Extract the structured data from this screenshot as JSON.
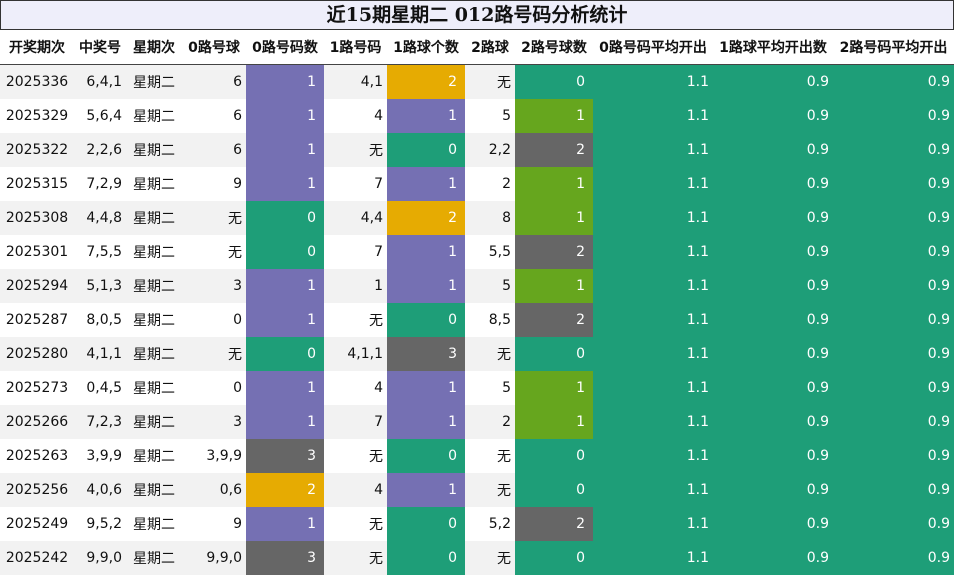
{
  "title": "近15期星期二 012路号码分析统计",
  "headers": [
    "开奖期次",
    "中奖号",
    "星期次",
    "0路号球",
    "0路号码数",
    "1路号码",
    "1路球个数",
    "2路球",
    "2路号球数",
    "0路号码平均开出",
    "1路球平均开出数",
    "2路号码平均开出"
  ],
  "colors": {
    "count_0": "#1e9e78",
    "count_1": "#7570b3",
    "count_2": "#e6ab02",
    "count_3": "#666666",
    "route2_count_1": "#66a61e",
    "route2_count_2": "#666666",
    "average": "#1e9e78"
  },
  "rows": [
    {
      "period": "2025336",
      "number": "6,4,1",
      "weekday": "星期二",
      "r0": "6",
      "r0n": "1",
      "r1": "4,1",
      "r1n": "2",
      "r2": "无",
      "r2n": "0",
      "a0": "1.1",
      "a1": "0.9",
      "a2": "0.9"
    },
    {
      "period": "2025329",
      "number": "5,6,4",
      "weekday": "星期二",
      "r0": "6",
      "r0n": "1",
      "r1": "4",
      "r1n": "1",
      "r2": "5",
      "r2n": "1",
      "a0": "1.1",
      "a1": "0.9",
      "a2": "0.9"
    },
    {
      "period": "2025322",
      "number": "2,2,6",
      "weekday": "星期二",
      "r0": "6",
      "r0n": "1",
      "r1": "无",
      "r1n": "0",
      "r2": "2,2",
      "r2n": "2",
      "a0": "1.1",
      "a1": "0.9",
      "a2": "0.9"
    },
    {
      "period": "2025315",
      "number": "7,2,9",
      "weekday": "星期二",
      "r0": "9",
      "r0n": "1",
      "r1": "7",
      "r1n": "1",
      "r2": "2",
      "r2n": "1",
      "a0": "1.1",
      "a1": "0.9",
      "a2": "0.9"
    },
    {
      "period": "2025308",
      "number": "4,4,8",
      "weekday": "星期二",
      "r0": "无",
      "r0n": "0",
      "r1": "4,4",
      "r1n": "2",
      "r2": "8",
      "r2n": "1",
      "a0": "1.1",
      "a1": "0.9",
      "a2": "0.9"
    },
    {
      "period": "2025301",
      "number": "7,5,5",
      "weekday": "星期二",
      "r0": "无",
      "r0n": "0",
      "r1": "7",
      "r1n": "1",
      "r2": "5,5",
      "r2n": "2",
      "a0": "1.1",
      "a1": "0.9",
      "a2": "0.9"
    },
    {
      "period": "2025294",
      "number": "5,1,3",
      "weekday": "星期二",
      "r0": "3",
      "r0n": "1",
      "r1": "1",
      "r1n": "1",
      "r2": "5",
      "r2n": "1",
      "a0": "1.1",
      "a1": "0.9",
      "a2": "0.9"
    },
    {
      "period": "2025287",
      "number": "8,0,5",
      "weekday": "星期二",
      "r0": "0",
      "r0n": "1",
      "r1": "无",
      "r1n": "0",
      "r2": "8,5",
      "r2n": "2",
      "a0": "1.1",
      "a1": "0.9",
      "a2": "0.9"
    },
    {
      "period": "2025280",
      "number": "4,1,1",
      "weekday": "星期二",
      "r0": "无",
      "r0n": "0",
      "r1": "4,1,1",
      "r1n": "3",
      "r2": "无",
      "r2n": "0",
      "a0": "1.1",
      "a1": "0.9",
      "a2": "0.9"
    },
    {
      "period": "2025273",
      "number": "0,4,5",
      "weekday": "星期二",
      "r0": "0",
      "r0n": "1",
      "r1": "4",
      "r1n": "1",
      "r2": "5",
      "r2n": "1",
      "a0": "1.1",
      "a1": "0.9",
      "a2": "0.9"
    },
    {
      "period": "2025266",
      "number": "7,2,3",
      "weekday": "星期二",
      "r0": "3",
      "r0n": "1",
      "r1": "7",
      "r1n": "1",
      "r2": "2",
      "r2n": "1",
      "a0": "1.1",
      "a1": "0.9",
      "a2": "0.9"
    },
    {
      "period": "2025263",
      "number": "3,9,9",
      "weekday": "星期二",
      "r0": "3,9,9",
      "r0n": "3",
      "r1": "无",
      "r1n": "0",
      "r2": "无",
      "r2n": "0",
      "a0": "1.1",
      "a1": "0.9",
      "a2": "0.9"
    },
    {
      "period": "2025256",
      "number": "4,0,6",
      "weekday": "星期二",
      "r0": "0,6",
      "r0n": "2",
      "r1": "4",
      "r1n": "1",
      "r2": "无",
      "r2n": "0",
      "a0": "1.1",
      "a1": "0.9",
      "a2": "0.9"
    },
    {
      "period": "2025249",
      "number": "9,5,2",
      "weekday": "星期二",
      "r0": "9",
      "r0n": "1",
      "r1": "无",
      "r1n": "0",
      "r2": "5,2",
      "r2n": "2",
      "a0": "1.1",
      "a1": "0.9",
      "a2": "0.9"
    },
    {
      "period": "2025242",
      "number": "9,9,0",
      "weekday": "星期二",
      "r0": "9,9,0",
      "r0n": "3",
      "r1": "无",
      "r1n": "0",
      "r2": "无",
      "r2n": "0",
      "a0": "1.1",
      "a1": "0.9",
      "a2": "0.9"
    }
  ]
}
